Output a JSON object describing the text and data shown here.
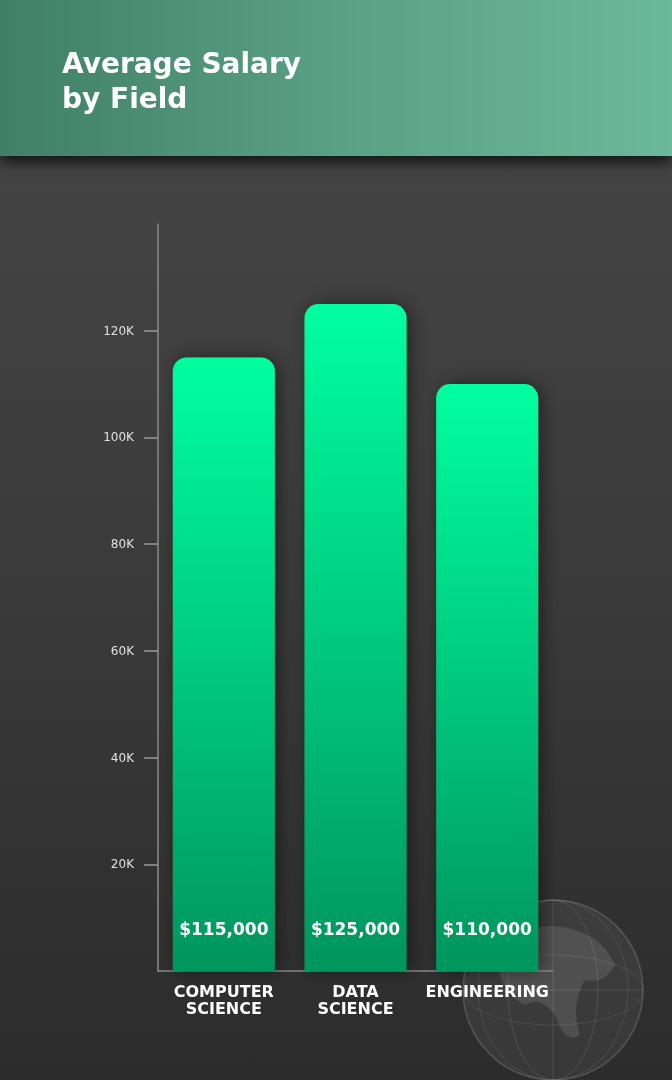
{
  "chart_data": {
    "type": "bar",
    "title": "Average Salary by Field",
    "categories": [
      "COMPUTER SCIENCE",
      "DATA SCIENCE",
      "ENGINEERING"
    ],
    "values": [
      115000,
      125000,
      110000
    ],
    "value_labels": [
      "$115,000",
      "$125,000",
      "$110,000"
    ],
    "color": "#00ca7e",
    "ylim": [
      0,
      140000
    ],
    "yticks": [
      {
        "value": 20000,
        "label": "20K"
      },
      {
        "value": 40000,
        "label": "40K"
      },
      {
        "value": 60000,
        "label": "60K"
      },
      {
        "value": 80000,
        "label": "80K"
      },
      {
        "value": 100000,
        "label": "100K"
      },
      {
        "value": 120000,
        "label": "120K"
      }
    ]
  }
}
